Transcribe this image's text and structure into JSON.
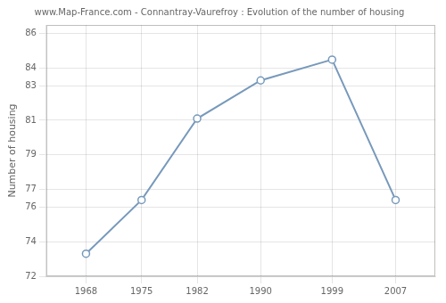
{
  "chart_data": {
    "type": "line",
    "title": "www.Map-France.com - Connantray-Vaurefroy : Evolution of the number of housing",
    "ylabel": "Number of housing",
    "x": [
      1968,
      1975,
      1982,
      1990,
      1999,
      2007
    ],
    "values": [
      73.3,
      76.4,
      81.1,
      83.3,
      84.5,
      76.4
    ],
    "color": "#7799bb",
    "marker": "circle",
    "xlim": [
      1963,
      2012
    ],
    "xticks": [
      1968,
      1975,
      1982,
      1990,
      1999,
      2007
    ],
    "ylim": [
      72,
      86.5
    ],
    "yticks": [
      72,
      74,
      76,
      77,
      79,
      81,
      83,
      84,
      86
    ],
    "grid": true
  }
}
